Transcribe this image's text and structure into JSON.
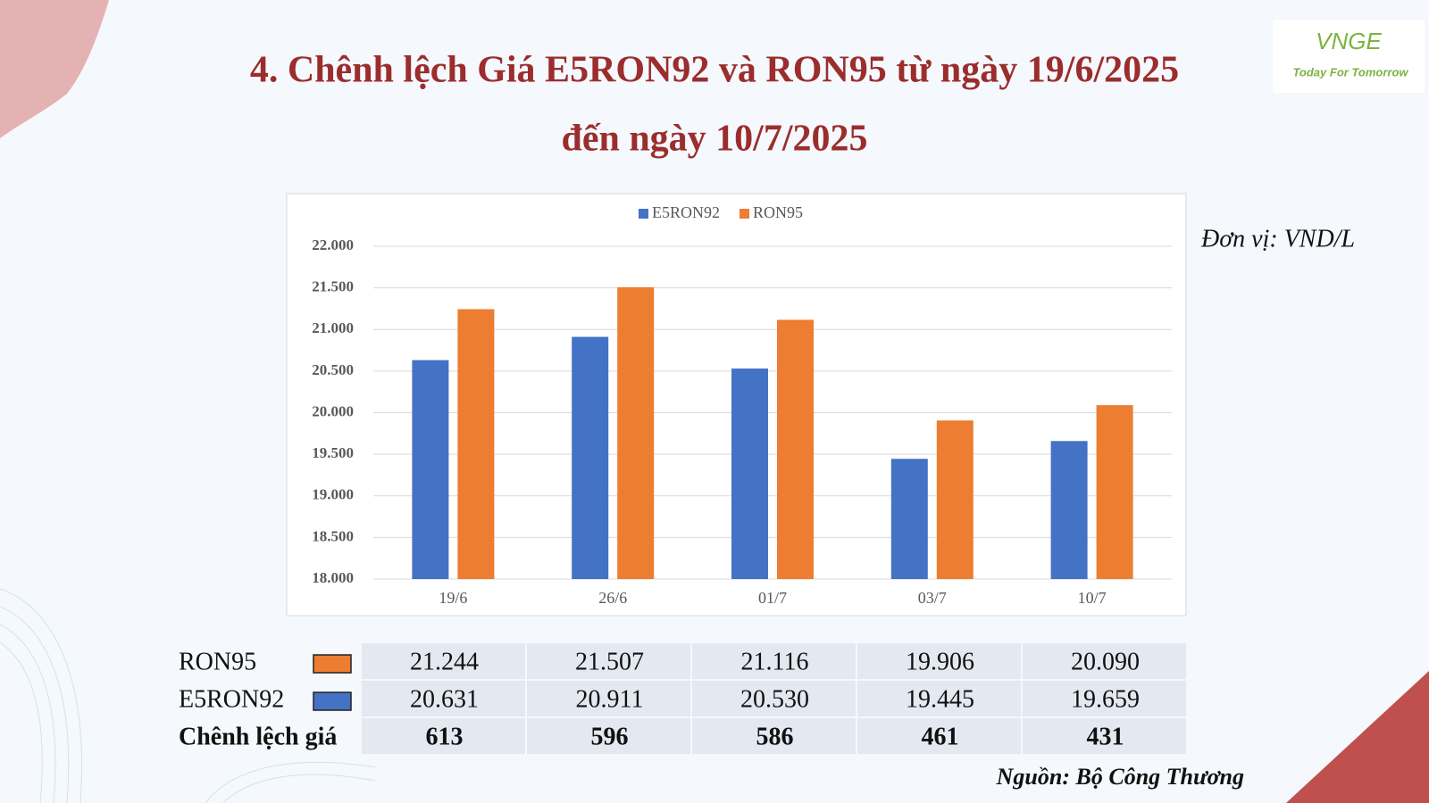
{
  "chart_data": {
    "type": "bar",
    "title": "4. Chênh lệch Giá E5RON92 và RON95 từ ngày 19/6/2025",
    "subtitle": "đến ngày 10/7/2025",
    "unit": "Đơn vị: VND/L",
    "source": "Nguồn: Bộ Công Thương",
    "categories": [
      "19/6",
      "26/6",
      "01/7",
      "03/7",
      "10/7"
    ],
    "series": [
      {
        "name": "E5RON92",
        "color": "#4472c4",
        "values": [
          20631,
          20911,
          20530,
          19445,
          19659
        ],
        "value_labels": [
          "20.631",
          "20.911",
          "20.530",
          "19.445",
          "19.659"
        ]
      },
      {
        "name": "RON95",
        "color": "#ed7d31",
        "values": [
          21244,
          21507,
          21116,
          19906,
          20090
        ],
        "value_labels": [
          "21.244",
          "21.507",
          "21.116",
          "19.906",
          "20.090"
        ]
      }
    ],
    "difference": {
      "name": "Chênh lệch giá",
      "values": [
        613,
        596,
        586,
        461,
        431
      ]
    },
    "ylim": [
      18000,
      22000
    ],
    "yticks": [
      {
        "value": 18000,
        "label": "18.000"
      },
      {
        "value": 18500,
        "label": "18.500"
      },
      {
        "value": 19000,
        "label": "19.000"
      },
      {
        "value": 19500,
        "label": "19.500"
      },
      {
        "value": 20000,
        "label": "20.000"
      },
      {
        "value": 20500,
        "label": "20.500"
      },
      {
        "value": 21000,
        "label": "21.000"
      },
      {
        "value": 21500,
        "label": "21.500"
      },
      {
        "value": 22000,
        "label": "22.000"
      }
    ],
    "grid": true,
    "legend": "top"
  },
  "logo": {
    "name": "VNGE",
    "slogan": "Today For Tomorrow"
  }
}
